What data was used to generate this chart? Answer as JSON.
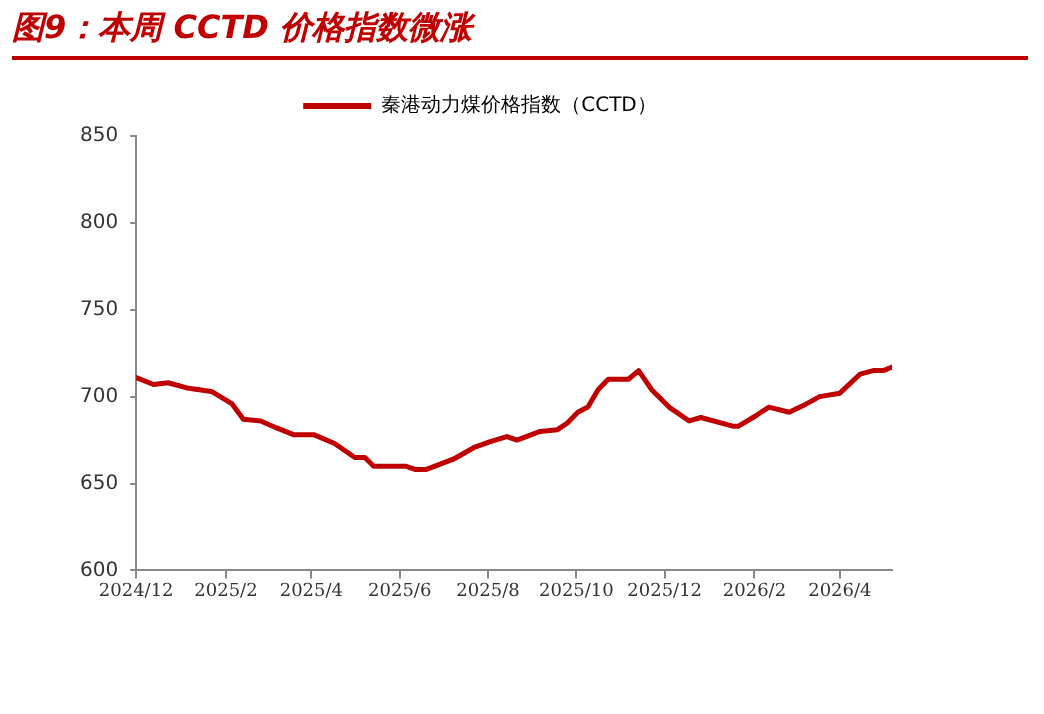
{
  "chart_data": {
    "type": "line",
    "title": "图9：本周 CCTD 价格指数微涨",
    "x": [
      "2024-12-01",
      "2024-12-13",
      "2024-12-23",
      "2025-01-05",
      "2025-01-22",
      "2025-02-05",
      "2025-02-13",
      "2025-02-25",
      "2025-03-08",
      "2025-03-20",
      "2025-04-03",
      "2025-04-17",
      "2025-05-01",
      "2025-05-08",
      "2025-05-14",
      "2025-06-05",
      "2025-06-12",
      "2025-06-19",
      "2025-07-08",
      "2025-07-23",
      "2025-08-02",
      "2025-08-14",
      "2025-08-21",
      "2025-09-06",
      "2025-09-18",
      "2025-09-25",
      "2025-10-02",
      "2025-10-09",
      "2025-10-16",
      "2025-10-23",
      "2025-11-06",
      "2025-11-13",
      "2025-11-22",
      "2025-12-04",
      "2025-12-18",
      "2025-12-26",
      "2026-01-08",
      "2026-01-17",
      "2026-01-21",
      "2026-02-02",
      "2026-02-11",
      "2026-02-25",
      "2026-03-07",
      "2026-03-18",
      "2026-04-01",
      "2026-04-15",
      "2026-04-24",
      "2026-05-01",
      "2026-05-07"
    ],
    "series": [
      {
        "name": "秦港动力煤价格指数（CCTD）",
        "color": "#c00000",
        "values": [
          711,
          707,
          708,
          705,
          703,
          696,
          687,
          686,
          682,
          678,
          678,
          673,
          665,
          665,
          660,
          660,
          658,
          658,
          664,
          671,
          674,
          677,
          675,
          680,
          681,
          685,
          691,
          694,
          704,
          710,
          710,
          715,
          704,
          694,
          686,
          688,
          685,
          683,
          683,
          689,
          694,
          691,
          695,
          700,
          702,
          713,
          715,
          715,
          717
        ]
      }
    ],
    "xlim": [
      "2024-12-01",
      "2026-05-07"
    ],
    "xticks": [
      {
        "value": "2024-12-01",
        "label": "2024/12"
      },
      {
        "value": "2025-02-01",
        "label": "2025/2"
      },
      {
        "value": "2025-04-01",
        "label": "2025/4"
      },
      {
        "value": "2025-06-01",
        "label": "2025/6"
      },
      {
        "value": "2025-08-01",
        "label": "2025/8"
      },
      {
        "value": "2025-10-01",
        "label": "2025/10"
      },
      {
        "value": "2025-12-01",
        "label": "2025/12"
      },
      {
        "value": "2026-02-01",
        "label": "2026/2"
      },
      {
        "value": "2026-04-01",
        "label": "2026/4"
      }
    ],
    "ylim": [
      600,
      850
    ],
    "yticks": [
      600,
      650,
      700,
      750,
      800,
      850
    ],
    "grid": false,
    "legend": "top",
    "marker": "none",
    "line_style": "solid"
  }
}
